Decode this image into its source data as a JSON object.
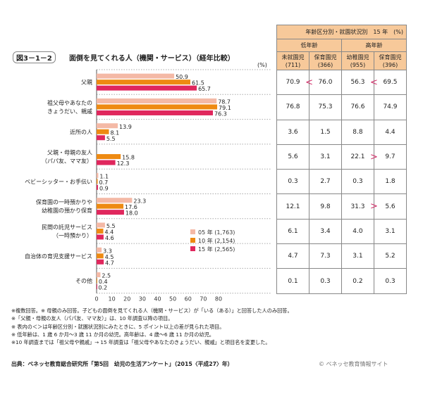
{
  "figure": {
    "number": "図3－1－2",
    "title": "面倒を見てくれる人（機関・サービス）（経年比較）",
    "unit": "(%)"
  },
  "chart_data": {
    "type": "bar",
    "orientation": "horizontal",
    "title": "面倒を見てくれる人（機関・サービス）（経年比較）",
    "xlim": [
      0,
      80
    ],
    "xticks": [
      "0",
      "10",
      "20",
      "30",
      "40",
      "50",
      "60",
      "70",
      "80"
    ],
    "categories": [
      "父親",
      "祖父母やあなたの\nきょうだい、親戚",
      "近所の人",
      "父親・母親の友人\n（パパ友、ママ友）",
      "ベビーシッター・お手伝い",
      "保育園の一時預かりや\n幼稚園の預かり保育",
      "民間の託児サービス\n（一時預かり）",
      "自治体の育児支援サービス",
      "その他"
    ],
    "series": [
      {
        "name": "05 年 (1,763)",
        "color": "#f4b9a6",
        "values": [
          50.9,
          78.7,
          13.9,
          null,
          1.1,
          23.3,
          5.5,
          3.3,
          2.5
        ]
      },
      {
        "name": "10 年 (2,154)",
        "color": "#ee8a12",
        "values": [
          61.5,
          79.1,
          8.1,
          15.8,
          0.7,
          17.6,
          4.4,
          4.5,
          0.4
        ]
      },
      {
        "name": "15 年 (2,565)",
        "color": "#e0275d",
        "values": [
          65.7,
          76.3,
          5.5,
          12.3,
          0.9,
          18.0,
          4.6,
          4.7,
          0.2
        ]
      }
    ],
    "legend": "center-right"
  },
  "table": {
    "title": "年齢区分別・就園状況別　15 年　(%)",
    "groups": [
      "低年齢",
      "高年齢"
    ],
    "columns": [
      "未就園児\n(711)",
      "保育園児\n(366)",
      "幼稚園児\n(955)",
      "保育園児\n(396)"
    ],
    "rows": [
      [
        "70.9",
        "76.0",
        "56.3",
        "69.5"
      ],
      [
        "76.8",
        "75.3",
        "76.6",
        "74.9"
      ],
      [
        "3.6",
        "1.5",
        "8.8",
        "4.4"
      ],
      [
        "5.6",
        "3.1",
        "22.1",
        "9.7"
      ],
      [
        "0.3",
        "2.7",
        "0.3",
        "1.8"
      ],
      [
        "12.1",
        "9.8",
        "31.3",
        "5.6"
      ],
      [
        "6.1",
        "3.4",
        "4.0",
        "3.1"
      ],
      [
        "4.7",
        "7.3",
        "3.1",
        "5.2"
      ],
      [
        "0.1",
        "0.3",
        "0.2",
        "0.3"
      ]
    ],
    "comparisons": [
      {
        "row": 0,
        "left": "<",
        "right": "<"
      },
      {
        "row": 3,
        "left": "",
        "right": ">"
      },
      {
        "row": 5,
        "left": "",
        "right": ">"
      }
    ]
  },
  "notes": [
    "※複数回答。※ 母親のみ回答。子どもの面倒を見てくれる人（機関・サービス）が「いる（ある）」と回答した人のみ回答。",
    "※「父親・母親の友人（パパ友、ママ友）」は、10 年調査以降の項目。",
    "※ 表内の＜＞は年齢区分別・就園状況別にみたときに、5 ポイント以上の差が見られた項目。",
    "※ 低年齢は、1 歳 6 か月～3 歳 11 か月の幼児。高年齢は、4 歳～6 歳 11 か月の幼児。",
    "※10 年調査までは「祖父母や親戚」→ 15 年調査は「祖父母やあなたのきょうだい、親戚」と項目名を変更した。"
  ],
  "source": "出典：ベネッセ教育総合研究所「第5回　幼児の生活アンケート」（2015〈平成27〉年）",
  "copyright": "© ベネッセ教育情報サイト"
}
